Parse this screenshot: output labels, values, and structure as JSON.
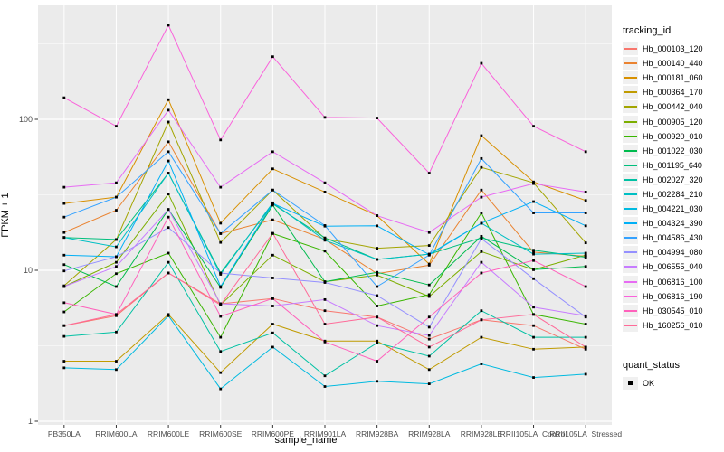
{
  "figure": {
    "background": "#FFFFFF",
    "panel_background": "#EBEBEB",
    "grid_color": "#FFFFFF",
    "tick_label_color": "#4D4D4D",
    "tick_mark_color": "#333333",
    "legend_key_fill": "#F0F0F0"
  },
  "legend": {
    "tracking_title": "tracking_id",
    "quant_title": "quant_status",
    "quant_items": [
      {
        "label": "OK",
        "shape": "black-square"
      }
    ]
  },
  "chart_data": {
    "type": "line",
    "title": "",
    "xlabel": "sample_name",
    "ylabel": "FPKM + 1",
    "log_y": true,
    "y_ticks": [
      1,
      10,
      100
    ],
    "ylim": [
      1,
      430
    ],
    "grid": "on",
    "legend_position": "right",
    "marker": "black-square",
    "marker_meaning": "quant_status OK",
    "categories": [
      "PB350LA",
      "RRIM600LA",
      "RRIM600LE",
      "RRIM600SE",
      "RRIM600PE",
      "RRIM901LA",
      "RRIM928BA",
      "RRIM928LA",
      "RRIM928LE",
      "RRII105LA_Control",
      "RRII105LA_Stressed"
    ],
    "series": [
      {
        "name": "Hb_000103_120",
        "color": "#F8766D",
        "values": [
          4.3,
          5.0,
          9.6,
          6.0,
          6.5,
          5.4,
          4.9,
          3.5,
          4.7,
          4.3,
          3.0
        ]
      },
      {
        "name": "Hb_000140_440",
        "color": "#EA8331",
        "values": [
          17.8,
          25,
          71,
          17.5,
          21.6,
          16.0,
          9.5,
          10.8,
          34,
          13.2,
          12.4
        ]
      },
      {
        "name": "Hb_000181_060",
        "color": "#D89000",
        "values": [
          27.7,
          30.5,
          135,
          20.5,
          47,
          33,
          23,
          11.0,
          78,
          38.5,
          29
        ]
      },
      {
        "name": "Hb_000364_170",
        "color": "#C09B00",
        "values": [
          2.5,
          2.5,
          5.1,
          2.1,
          4.4,
          3.4,
          3.4,
          2.2,
          3.6,
          3.0,
          3.1
        ]
      },
      {
        "name": "Hb_000442_040",
        "color": "#A3A500",
        "values": [
          7.9,
          16,
          96,
          15.3,
          34,
          16.2,
          14,
          14.6,
          48,
          38,
          15.2
        ]
      },
      {
        "name": "Hb_000905_120",
        "color": "#7CAE00",
        "values": [
          7.8,
          11.3,
          32,
          5.9,
          12.6,
          8.4,
          9.3,
          6.7,
          13.3,
          10.1,
          12.6
        ]
      },
      {
        "name": "Hb_000920_010",
        "color": "#39B600",
        "values": [
          5.3,
          9.5,
          13.0,
          3.6,
          17.5,
          13.4,
          5.8,
          6.9,
          24,
          5.1,
          4.4
        ]
      },
      {
        "name": "Hb_001022_030",
        "color": "#00BB4E",
        "values": [
          10.9,
          7.8,
          25.3,
          7.7,
          27,
          8.4,
          9.7,
          8.0,
          16.8,
          10.1,
          10.6
        ]
      },
      {
        "name": "Hb_001195_640",
        "color": "#00BF7D",
        "values": [
          16.5,
          16,
          44,
          9.6,
          27.5,
          16.4,
          11.8,
          12.8,
          16.4,
          13.6,
          12.2
        ]
      },
      {
        "name": "Hb_002027_320",
        "color": "#00C1A3",
        "values": [
          3.65,
          3.9,
          11.3,
          2.9,
          3.85,
          2.0,
          3.3,
          2.7,
          5.4,
          3.6,
          3.6
        ]
      },
      {
        "name": "Hb_002284_210",
        "color": "#00BFC4",
        "values": [
          16.5,
          14.3,
          44,
          9.4,
          28,
          15.8,
          11.8,
          12.8,
          20.5,
          12.8,
          13.0
        ]
      },
      {
        "name": "Hb_004221_030",
        "color": "#00BAE0",
        "values": [
          2.26,
          2.2,
          5.0,
          1.64,
          3.1,
          1.7,
          1.84,
          1.77,
          2.4,
          1.95,
          2.05
        ]
      },
      {
        "name": "Hb_004324_390",
        "color": "#00B0F6",
        "values": [
          12.6,
          12.3,
          53,
          7.8,
          27.7,
          19.6,
          19.7,
          12.7,
          20.5,
          28.5,
          19.7
        ]
      },
      {
        "name": "Hb_004586_430",
        "color": "#35A2FF",
        "values": [
          22.5,
          30.5,
          61,
          17.5,
          34,
          19.8,
          7.8,
          12.6,
          55,
          24,
          24
        ]
      },
      {
        "name": "Hb_004994_080",
        "color": "#9590FF",
        "values": [
          9.9,
          12.3,
          19.2,
          9.6,
          8.9,
          8.3,
          6.8,
          4.2,
          16.2,
          8.8,
          4.9
        ]
      },
      {
        "name": "Hb_006555_040",
        "color": "#C77CFF",
        "values": [
          7.8,
          10.6,
          25.3,
          6.0,
          5.8,
          6.4,
          4.3,
          3.7,
          11.3,
          5.7,
          5.0
        ]
      },
      {
        "name": "Hb_006816_100",
        "color": "#E76BF3",
        "values": [
          35.5,
          38,
          115,
          35.5,
          61,
          38,
          23,
          17.8,
          30.5,
          37.5,
          33
        ]
      },
      {
        "name": "Hb_006816_190",
        "color": "#FA62DB",
        "values": [
          139,
          90,
          420,
          73,
          260,
          103,
          102,
          44,
          235,
          90,
          61
        ]
      },
      {
        "name": "Hb_030545_010",
        "color": "#FF62BC",
        "values": [
          6.1,
          5.1,
          22.5,
          4.95,
          6.5,
          3.35,
          2.5,
          4.9,
          9.6,
          11.6,
          7.8
        ]
      },
      {
        "name": "Hb_160256_010",
        "color": "#FF6A98",
        "values": [
          4.3,
          5.1,
          9.6,
          5.9,
          17.6,
          4.4,
          4.9,
          3.1,
          4.7,
          5.1,
          3.1
        ]
      }
    ]
  }
}
